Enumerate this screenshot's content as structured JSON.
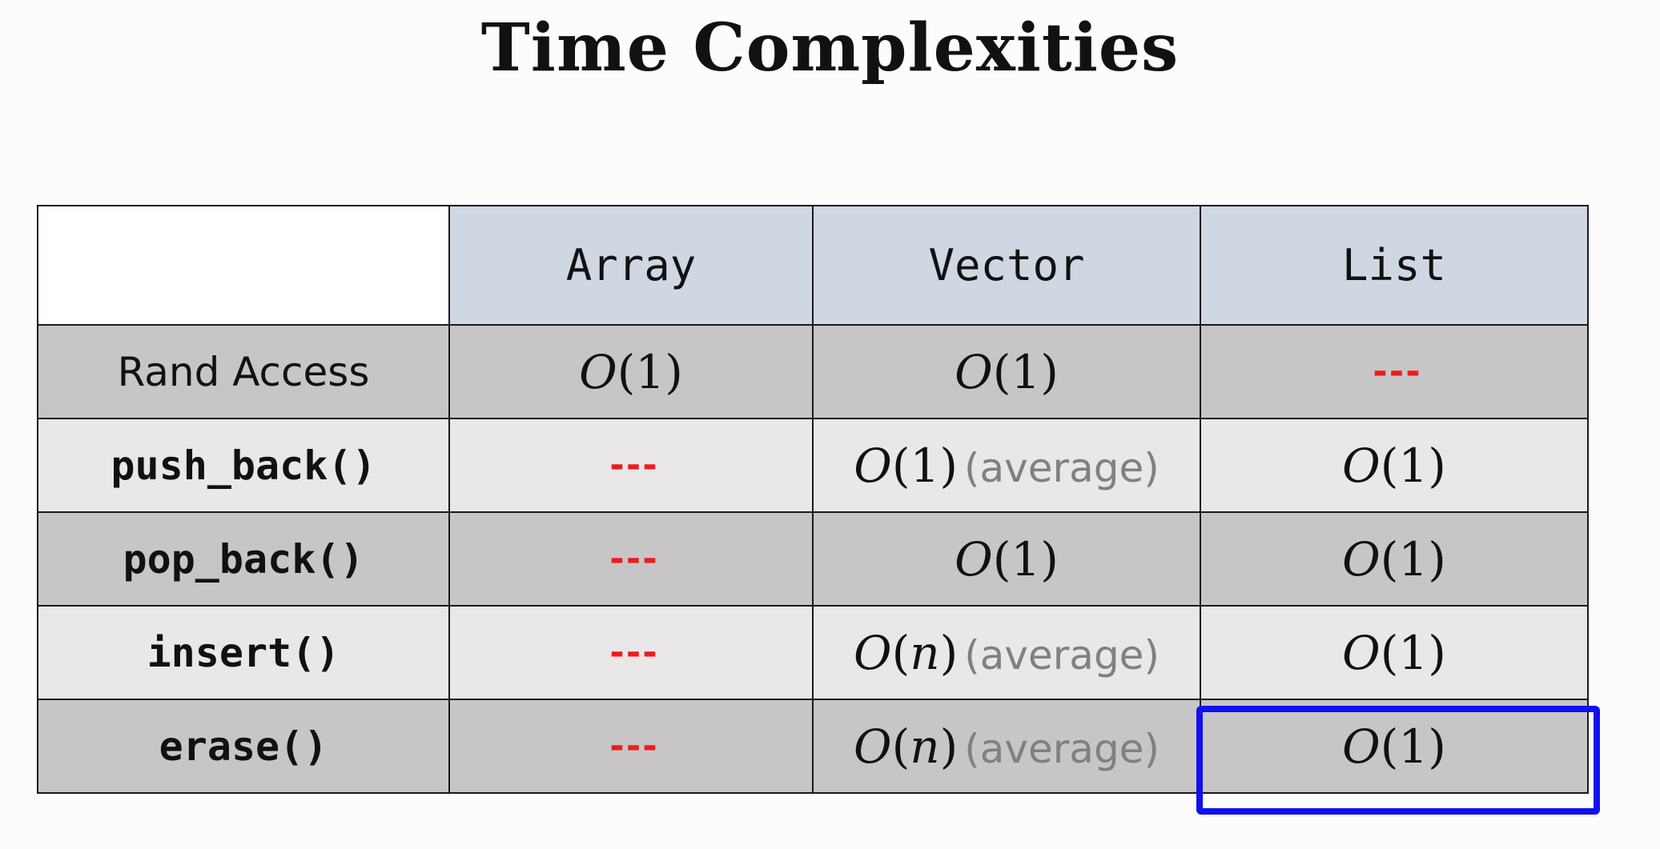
{
  "title": "Time Complexities",
  "columns": [
    "Array",
    "Vector",
    "List"
  ],
  "rows": [
    {
      "operation": "Rand Access",
      "cells": [
        {
          "value": "1",
          "na": false,
          "qualifier": ""
        },
        {
          "value": "1",
          "na": false,
          "qualifier": ""
        },
        {
          "value": "---",
          "na": true,
          "qualifier": ""
        }
      ]
    },
    {
      "operation": "push_back()",
      "cells": [
        {
          "value": "---",
          "na": true,
          "qualifier": ""
        },
        {
          "value": "1",
          "na": false,
          "qualifier": "(average)"
        },
        {
          "value": "1",
          "na": false,
          "qualifier": ""
        }
      ]
    },
    {
      "operation": "pop_back()",
      "cells": [
        {
          "value": "---",
          "na": true,
          "qualifier": ""
        },
        {
          "value": "1",
          "na": false,
          "qualifier": ""
        },
        {
          "value": "1",
          "na": false,
          "qualifier": ""
        }
      ]
    },
    {
      "operation": "insert()",
      "cells": [
        {
          "value": "---",
          "na": true,
          "qualifier": ""
        },
        {
          "value": "n",
          "na": false,
          "qualifier": "(average)"
        },
        {
          "value": "1",
          "na": false,
          "qualifier": ""
        }
      ]
    },
    {
      "operation": "erase()",
      "cells": [
        {
          "value": "---",
          "na": true,
          "qualifier": ""
        },
        {
          "value": "n",
          "na": false,
          "qualifier": "(average)"
        },
        {
          "value": "1",
          "na": false,
          "qualifier": ""
        }
      ]
    }
  ],
  "highlight_color": "#1010f0",
  "na_color": "#ee1c1c"
}
